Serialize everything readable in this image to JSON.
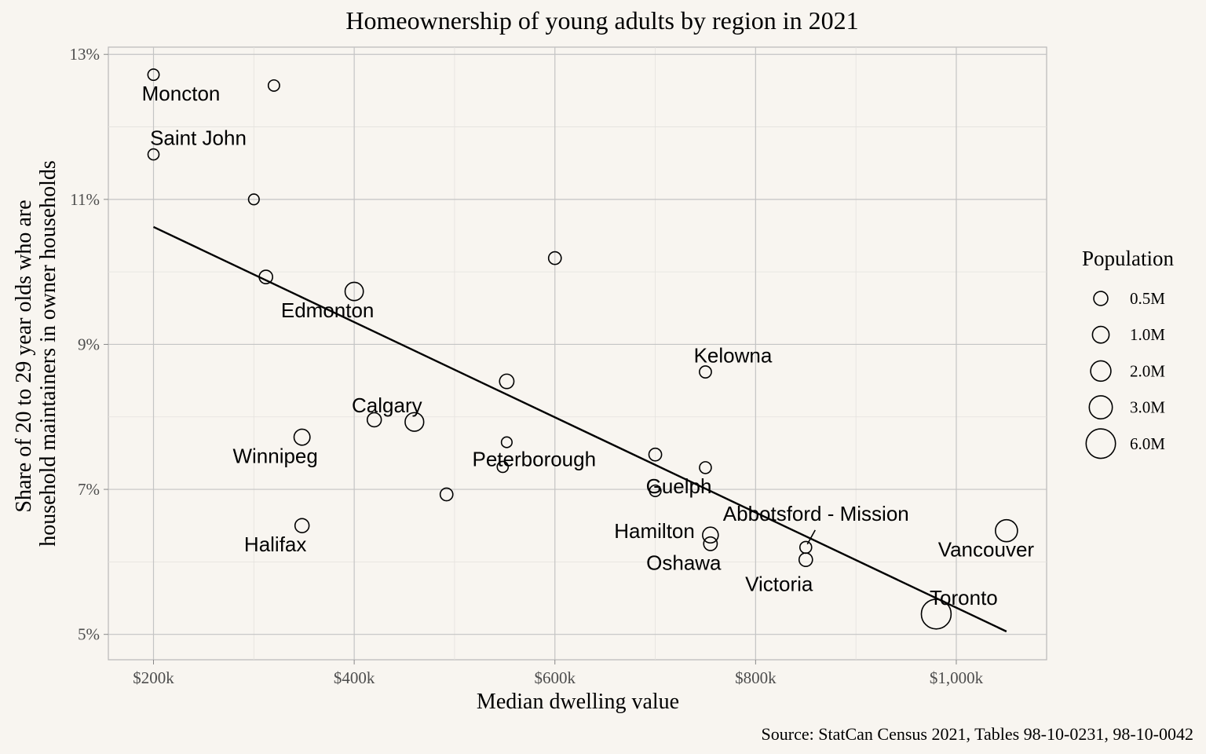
{
  "chart_data": {
    "type": "scatter",
    "title": "Homeownership of young adults by region in 2021",
    "xlabel": "Median dwelling value",
    "ylabel_lines": [
      "Share of 20 to 29 year olds who are",
      "household maintainers in owner households"
    ],
    "source": "Source: StatCan Census 2021, Tables 98-10-0231, 98-10-0042",
    "xlim": [
      155000,
      1090000
    ],
    "ylim": [
      4.65,
      13.1
    ],
    "x_ticks": [
      {
        "value": 200000,
        "label": "$200k"
      },
      {
        "value": 400000,
        "label": "$400k"
      },
      {
        "value": 600000,
        "label": "$600k"
      },
      {
        "value": 800000,
        "label": "$800k"
      },
      {
        "value": 1000000,
        "label": "$1,000k"
      }
    ],
    "y_ticks": [
      {
        "value": 5,
        "label": "5%"
      },
      {
        "value": 7,
        "label": "7%"
      },
      {
        "value": 9,
        "label": "9%"
      },
      {
        "value": 11,
        "label": "11%"
      },
      {
        "value": 13,
        "label": "13%"
      }
    ],
    "grid": true,
    "legend": {
      "title": "Population",
      "position": "right",
      "entries": [
        {
          "label": "0.5M",
          "value": 0.5
        },
        {
          "label": "1.0M",
          "value": 1.0
        },
        {
          "label": "2.0M",
          "value": 2.0
        },
        {
          "label": "3.0M",
          "value": 3.0
        },
        {
          "label": "6.0M",
          "value": 6.0
        }
      ]
    },
    "trend_line": {
      "x": [
        200000,
        1050000
      ],
      "y": [
        10.62,
        5.04
      ]
    },
    "points": [
      {
        "name": "Moncton",
        "x": 200000,
        "y": 12.72,
        "pop": 0.15,
        "label": "Moncton"
      },
      {
        "name": "",
        "x": 320000,
        "y": 12.57,
        "pop": 0.15,
        "label": ""
      },
      {
        "name": "Saint John",
        "x": 200000,
        "y": 11.62,
        "pop": 0.13,
        "label": "Saint John"
      },
      {
        "name": "",
        "x": 300000,
        "y": 11.0,
        "pop": 0.1,
        "label": ""
      },
      {
        "name": "",
        "x": 312000,
        "y": 9.93,
        "pop": 0.4,
        "label": ""
      },
      {
        "name": "Edmonton",
        "x": 400000,
        "y": 9.73,
        "pop": 1.4,
        "label": "Edmonton"
      },
      {
        "name": "",
        "x": 600000,
        "y": 10.19,
        "pop": 0.3,
        "label": ""
      },
      {
        "name": "Kelowna",
        "x": 750000,
        "y": 8.62,
        "pop": 0.22,
        "label": "Kelowna"
      },
      {
        "name": "",
        "x": 552000,
        "y": 8.49,
        "pop": 0.55,
        "label": ""
      },
      {
        "name": "",
        "x": 420000,
        "y": 7.96,
        "pop": 0.5,
        "label": ""
      },
      {
        "name": "Calgary",
        "x": 460000,
        "y": 7.93,
        "pop": 1.5,
        "label": "Calgary"
      },
      {
        "name": "Winnipeg",
        "x": 348000,
        "y": 7.72,
        "pop": 0.85,
        "label": "Winnipeg"
      },
      {
        "name": "",
        "x": 552000,
        "y": 7.65,
        "pop": 0.1,
        "label": ""
      },
      {
        "name": "",
        "x": 700000,
        "y": 7.48,
        "pop": 0.3,
        "label": ""
      },
      {
        "name": "Peterborough",
        "x": 548000,
        "y": 7.31,
        "pop": 0.13,
        "label": "Peterborough"
      },
      {
        "name": "",
        "x": 750000,
        "y": 7.3,
        "pop": 0.2,
        "label": ""
      },
      {
        "name": "Guelph",
        "x": 700000,
        "y": 6.98,
        "pop": 0.17,
        "label": "Guelph"
      },
      {
        "name": "",
        "x": 492000,
        "y": 6.93,
        "pop": 0.3,
        "label": ""
      },
      {
        "name": "Halifax",
        "x": 348000,
        "y": 6.5,
        "pop": 0.5,
        "label": "Halifax"
      },
      {
        "name": "Hamilton",
        "x": 755000,
        "y": 6.37,
        "pop": 0.8,
        "label": "Hamilton"
      },
      {
        "name": "Oshawa",
        "x": 755000,
        "y": 6.25,
        "pop": 0.42,
        "label": "Oshawa"
      },
      {
        "name": "Abbotsford - Mission",
        "x": 850000,
        "y": 6.2,
        "pop": 0.2,
        "label": "Abbotsford - Mission"
      },
      {
        "name": "Victoria",
        "x": 850000,
        "y": 6.03,
        "pop": 0.4,
        "label": "Victoria"
      },
      {
        "name": "Vancouver",
        "x": 1050000,
        "y": 6.43,
        "pop": 2.6,
        "label": "Vancouver"
      },
      {
        "name": "Toronto",
        "x": 980000,
        "y": 5.28,
        "pop": 6.2,
        "label": "Toronto"
      }
    ]
  }
}
